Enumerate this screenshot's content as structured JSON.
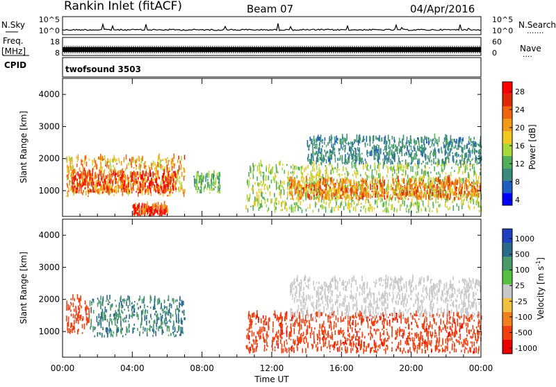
{
  "header": {
    "station": "Rankin Inlet (fitACF)",
    "beam": "Beam 07",
    "date": "04/Apr/2016"
  },
  "nsky_panel": {
    "left_label": "N.Sky",
    "left_ticks": [
      "10^5",
      "10^0"
    ],
    "right_ticks": [
      "10^5",
      "10^0"
    ],
    "right_label": "N.Search",
    "right_dots": "·······"
  },
  "freq_panel": {
    "left_label_top": "Freq.",
    "left_label_unit": "[MHz]",
    "left_ticks": [
      "18",
      "8"
    ],
    "right_ticks": [
      "60",
      "0"
    ],
    "right_label": "Nave",
    "right_dots": "····"
  },
  "cpid_panel": {
    "left_label": "CPID",
    "program": "twofsound 3503"
  },
  "power_panel": {
    "ylabel": "Slant Range [km]",
    "yticks": [
      "4000",
      "3000",
      "2000",
      "1000"
    ],
    "colorbar_label": "Power [dB]",
    "colorbar_ticks": [
      "28",
      "24",
      "20",
      "16",
      "12",
      "8",
      "4"
    ],
    "colors": [
      "#0000ff",
      "#1f5fbf",
      "#3c8a7a",
      "#52b05a",
      "#a8d83a",
      "#f0c820",
      "#f09a18",
      "#f06410",
      "#e02808",
      "#ff0000"
    ]
  },
  "velocity_panel": {
    "ylabel": "Slant Range [km]",
    "yticks": [
      "4000",
      "3000",
      "2000",
      "1000"
    ],
    "colorbar_label": "Velocity [m s",
    "colorbar_label_sup": "-1",
    "colorbar_label_end": "]",
    "colorbar_ticks": [
      "1000",
      "500",
      "100",
      "25",
      "-25",
      "-100",
      "-500",
      "-1000"
    ],
    "colors": [
      "#2040c0",
      "#2a6a8a",
      "#4a9a6a",
      "#58c040",
      "#c8c8c8",
      "#f0c040",
      "#f08020",
      "#f04010",
      "#e80000"
    ]
  },
  "xaxis": {
    "ticks": [
      "00:00",
      "04:00",
      "08:00",
      "12:00",
      "16:00",
      "20:00",
      "00:00"
    ],
    "label": "Time UT"
  },
  "chart_data": {
    "type": "heatmap",
    "title": "Rankin Inlet (fitACF)",
    "x": [
      "00:00",
      "04:00",
      "08:00",
      "12:00",
      "16:00",
      "20:00",
      "00:00"
    ],
    "xlabel": "Time UT",
    "ylabel": "Slant Range [km]",
    "ylim": [
      200,
      4500
    ],
    "panels": [
      {
        "name": "Power [dB]",
        "colorbar_range": [
          0,
          32
        ]
      },
      {
        "name": "Velocity [m s-1]",
        "colorbar_range": [
          -1000,
          1000
        ]
      }
    ],
    "echo_regions_power": [
      {
        "t0": 0.2,
        "t1": 7.0,
        "r0": 800,
        "r1": 2000,
        "level": 20
      },
      {
        "t0": 0.5,
        "t1": 6.5,
        "r0": 900,
        "r1": 1500,
        "level": 26
      },
      {
        "t0": 4.0,
        "t1": 6.0,
        "r0": 200,
        "r1": 500,
        "level": 28
      },
      {
        "t0": 7.5,
        "t1": 9.0,
        "r0": 900,
        "r1": 1500,
        "level": 12
      },
      {
        "t0": 10.5,
        "t1": 24.0,
        "r0": 300,
        "r1": 1800,
        "level": 14
      },
      {
        "t0": 13.0,
        "t1": 24.0,
        "r0": 700,
        "r1": 1300,
        "level": 22
      },
      {
        "t0": 14.0,
        "t1": 24.0,
        "r0": 1800,
        "r1": 2600,
        "level": 8
      }
    ],
    "echo_regions_velocity": [
      {
        "t0": 0.2,
        "t1": 1.5,
        "r0": 900,
        "r1": 2000,
        "level": -300
      },
      {
        "t0": 1.5,
        "t1": 7.0,
        "r0": 800,
        "r1": 2000,
        "level": 200
      },
      {
        "t0": 10.5,
        "t1": 24.0,
        "r0": 300,
        "r1": 1500,
        "level": -400
      },
      {
        "t0": 13.0,
        "t1": 24.0,
        "r0": 1400,
        "r1": 2600,
        "level": 0
      }
    ]
  }
}
